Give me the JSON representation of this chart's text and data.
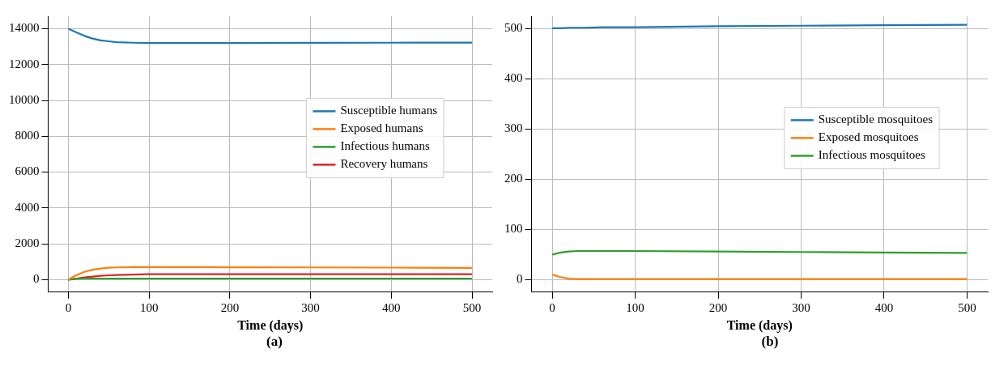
{
  "chart_data": [
    {
      "type": "line",
      "xlabel": "Time (days)",
      "annotations": [
        "(a)"
      ],
      "x": [
        0,
        10,
        20,
        30,
        40,
        50,
        60,
        80,
        100,
        150,
        200,
        300,
        400,
        500
      ],
      "xlim": [
        -25,
        525
      ],
      "xticks": [
        0,
        100,
        200,
        300,
        400,
        500
      ],
      "ylim": [
        -700,
        14700
      ],
      "yticks": [
        0,
        2000,
        4000,
        6000,
        8000,
        10000,
        12000,
        14000
      ],
      "grid": true,
      "legend": "right",
      "series": [
        {
          "name": "Susceptible humans",
          "color": "#1f77b4",
          "values": [
            14000,
            13800,
            13600,
            13450,
            13350,
            13300,
            13250,
            13220,
            13200,
            13200,
            13200,
            13210,
            13220,
            13230
          ]
        },
        {
          "name": "Exposed humans",
          "color": "#ff7f0e",
          "values": [
            0,
            250,
            430,
            550,
            620,
            660,
            680,
            700,
            700,
            700,
            690,
            680,
            670,
            650
          ]
        },
        {
          "name": "Infectious humans",
          "color": "#2ca02c",
          "values": [
            0,
            40,
            60,
            60,
            60,
            60,
            60,
            60,
            60,
            60,
            60,
            60,
            60,
            60
          ]
        },
        {
          "name": "Recovery humans",
          "color": "#d62728",
          "values": [
            0,
            60,
            120,
            170,
            210,
            240,
            260,
            280,
            300,
            300,
            300,
            300,
            300,
            300
          ]
        }
      ]
    },
    {
      "type": "line",
      "xlabel": "Time (days)",
      "annotations": [
        "(b)"
      ],
      "x": [
        0,
        10,
        20,
        30,
        40,
        60,
        100,
        200,
        300,
        400,
        500
      ],
      "xlim": [
        -25,
        525
      ],
      "xticks": [
        0,
        100,
        200,
        300,
        400,
        500
      ],
      "ylim": [
        -25,
        525
      ],
      "yticks": [
        0,
        100,
        200,
        300,
        400,
        500
      ],
      "grid": true,
      "legend": "right",
      "series": [
        {
          "name": "Susceptible mosquitoes",
          "color": "#1f77b4",
          "values": [
            501,
            501,
            502,
            502,
            502,
            503,
            503,
            505,
            506,
            507,
            508
          ]
        },
        {
          "name": "Exposed mosquitoes",
          "color": "#ff7f0e",
          "values": [
            10,
            5,
            2,
            1,
            1,
            1,
            1,
            1,
            1,
            1,
            1
          ]
        },
        {
          "name": "Infectious mosquitoes",
          "color": "#2ca02c",
          "values": [
            50,
            54,
            56,
            57,
            57,
            57,
            57,
            56,
            55,
            54,
            53
          ]
        }
      ]
    }
  ]
}
